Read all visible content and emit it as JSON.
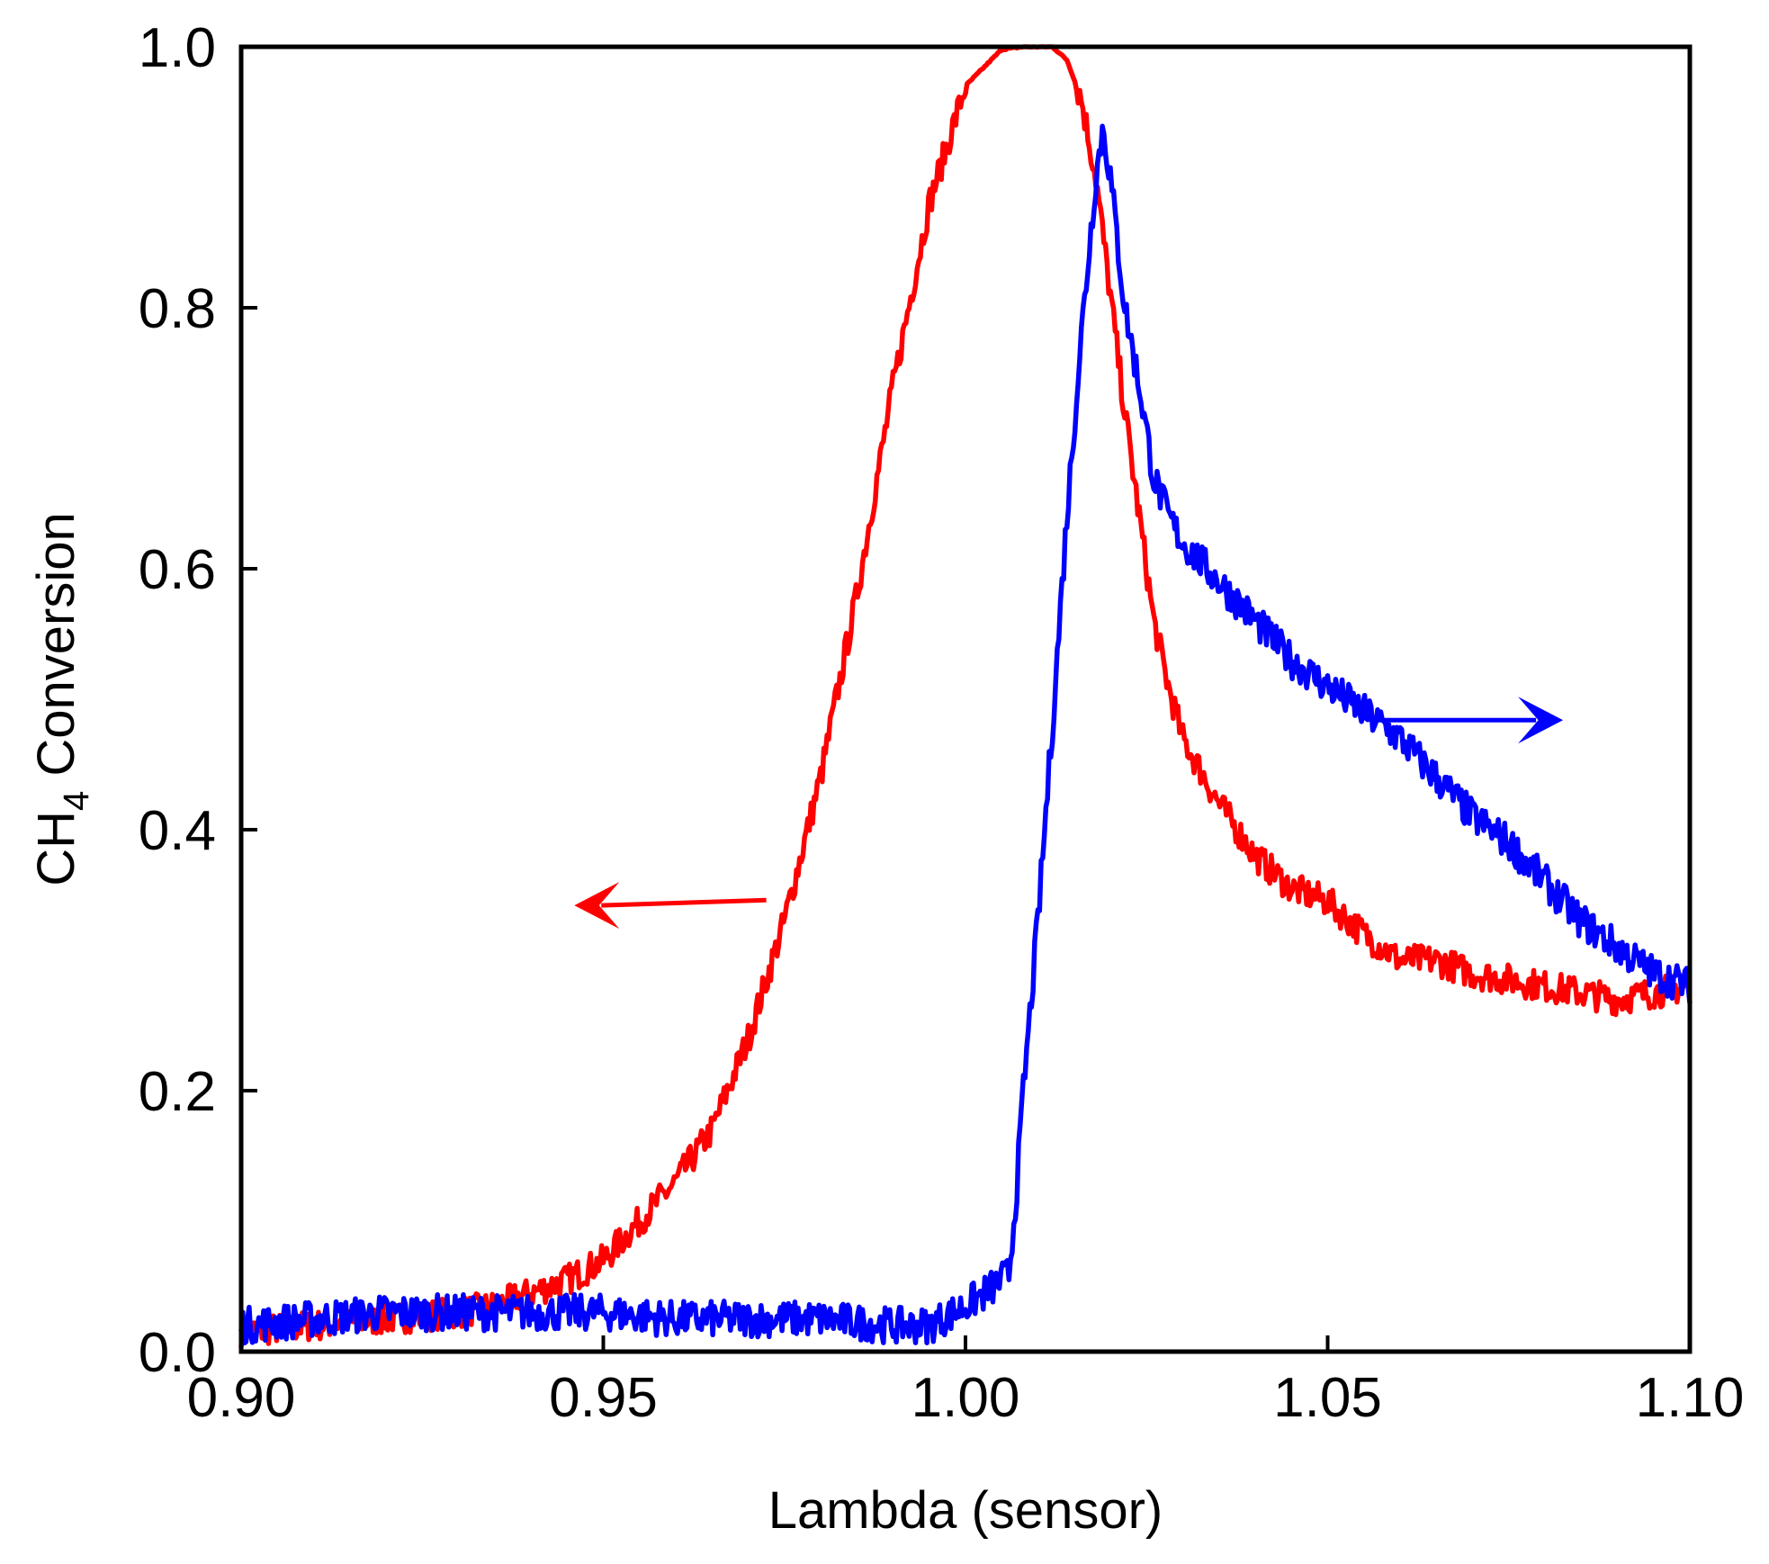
{
  "chart_data": {
    "type": "line",
    "title": "",
    "xlabel": "Lambda (sensor)",
    "ylabel": {
      "main": "CH",
      "subscript": "4",
      "rest": " Conversion"
    },
    "xlim": [
      0.9,
      1.1
    ],
    "ylim": [
      0.0,
      1.0
    ],
    "xticks": [
      0.9,
      0.95,
      1.0,
      1.05,
      1.1
    ],
    "xtick_labels": [
      "0.90",
      "0.95",
      "1.00",
      "1.05",
      "1.10"
    ],
    "yticks": [
      0.0,
      0.2,
      0.4,
      0.6,
      0.8,
      1.0
    ],
    "ytick_labels": [
      "0.0",
      "0.2",
      "0.4",
      "0.6",
      "0.8",
      "1.0"
    ],
    "grid": false,
    "legend": "none",
    "series": [
      {
        "name": "red-series",
        "color": "#ff0000",
        "noise": 0.012,
        "x": [
          0.9,
          0.91,
          0.92,
          0.93,
          0.935,
          0.94,
          0.945,
          0.95,
          0.955,
          0.96,
          0.965,
          0.97,
          0.975,
          0.98,
          0.985,
          0.99,
          0.995,
          1.0,
          1.005,
          1.008,
          1.012,
          1.014,
          1.016,
          1.018,
          1.02,
          1.022,
          1.024,
          1.026,
          1.028,
          1.03,
          1.035,
          1.04,
          1.045,
          1.05,
          1.055,
          1.06,
          1.065,
          1.07,
          1.075,
          1.08,
          1.085,
          1.09,
          1.095,
          1.1
        ],
        "y": [
          0.015,
          0.02,
          0.025,
          0.03,
          0.035,
          0.045,
          0.055,
          0.07,
          0.1,
          0.13,
          0.17,
          0.24,
          0.33,
          0.44,
          0.58,
          0.74,
          0.88,
          0.97,
          0.998,
          1.0,
          1.0,
          0.99,
          0.96,
          0.9,
          0.81,
          0.72,
          0.64,
          0.56,
          0.51,
          0.47,
          0.42,
          0.38,
          0.355,
          0.345,
          0.32,
          0.3,
          0.3,
          0.29,
          0.285,
          0.28,
          0.275,
          0.27,
          0.275,
          0.28
        ]
      },
      {
        "name": "blue-series",
        "color": "#0000ff",
        "noise": 0.014,
        "x": [
          0.9,
          0.91,
          0.92,
          0.93,
          0.94,
          0.95,
          0.96,
          0.97,
          0.98,
          0.99,
          0.995,
          1.0,
          1.004,
          1.006,
          1.007,
          1.008,
          1.01,
          1.012,
          1.014,
          1.016,
          1.018,
          1.019,
          1.02,
          1.021,
          1.022,
          1.024,
          1.026,
          1.028,
          1.03,
          1.035,
          1.04,
          1.045,
          1.05,
          1.055,
          1.06,
          1.065,
          1.07,
          1.075,
          1.08,
          1.085,
          1.09,
          1.095,
          1.1
        ],
        "y": [
          0.02,
          0.025,
          0.03,
          0.03,
          0.03,
          0.03,
          0.025,
          0.025,
          0.025,
          0.02,
          0.02,
          0.035,
          0.05,
          0.06,
          0.12,
          0.2,
          0.33,
          0.48,
          0.64,
          0.78,
          0.9,
          0.94,
          0.9,
          0.85,
          0.8,
          0.74,
          0.67,
          0.64,
          0.62,
          0.59,
          0.56,
          0.53,
          0.51,
          0.49,
          0.47,
          0.44,
          0.41,
          0.39,
          0.36,
          0.33,
          0.31,
          0.29,
          0.28
        ]
      }
    ],
    "annotations": [
      {
        "name": "red-left-arrow",
        "color": "#ff0000",
        "from": [
          0.9725,
          0.346
        ],
        "to": [
          0.946,
          0.342
        ],
        "meaning": "left axis"
      },
      {
        "name": "blue-right-arrow",
        "color": "#0000ff",
        "from": [
          1.0565,
          0.484
        ],
        "to": [
          1.0825,
          0.484
        ],
        "meaning": "right axis"
      }
    ]
  }
}
